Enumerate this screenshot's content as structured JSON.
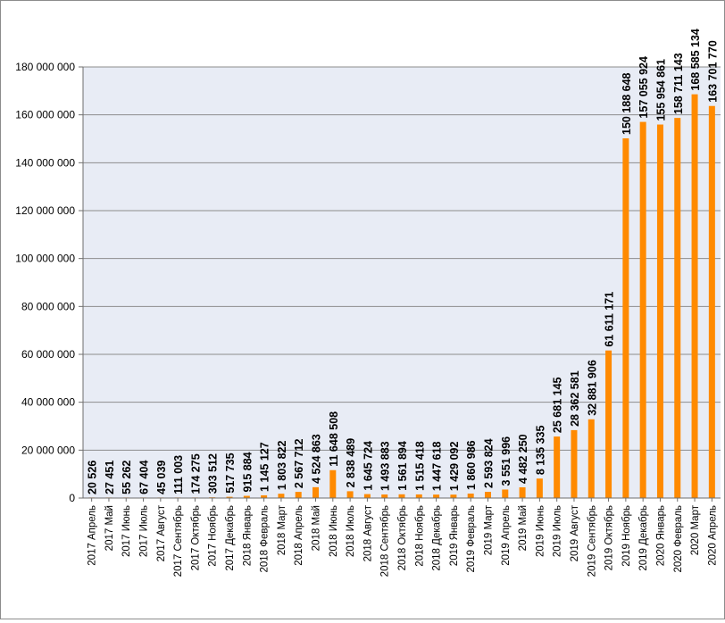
{
  "chart_data": {
    "type": "bar",
    "title": "",
    "xlabel": "",
    "ylabel": "",
    "ylim": [
      0,
      180000000
    ],
    "grid": true,
    "legend": "none",
    "colors": {
      "bar_top": "#14137a",
      "bar_mid": "#ff0000",
      "bar_bottom": "#ff8a00",
      "plot_bg": "#e8ecf5",
      "gridline": "#8c8c8c"
    },
    "y_tick_labels": [
      "0",
      "20 000 000",
      "40 000 000",
      "60 000 000",
      "80 000 000",
      "100 000 000",
      "120 000 000",
      "140 000 000",
      "160 000 000",
      "180 000 000"
    ],
    "categories": [
      "2017 Апрель",
      "2017 Май",
      "2017 Июнь",
      "2017 Июль",
      "2017 Август",
      "2017 Сентябрь",
      "2017 Октябрь",
      "2017 Ноябрь",
      "2017 Декабрь",
      "2018 Январь",
      "2018 Февраль",
      "2018 Март",
      "2018 Апрель",
      "2018 Май",
      "2018 Июнь",
      "2018 Июль",
      "2018 Август",
      "2018 Сентябрь",
      "2018 Октябрь",
      "2018 Ноябрь",
      "2018 Декабрь",
      "2019 Январь",
      "2019 Февраль",
      "2019 Март",
      "2019 Апрель",
      "2019 Май",
      "2019 Июнь",
      "2019 Июль",
      "2019 Август",
      "2019 Сентябрь",
      "2019 Октябрь",
      "2019 Ноябрь",
      "2019 Декабрь",
      "2020 Январь",
      "2020 Февраль",
      "2020 Март",
      "2020 Апрель"
    ],
    "values": [
      20526,
      27451,
      55262,
      67404,
      45039,
      111003,
      174275,
      303512,
      517735,
      915884,
      1145127,
      1803822,
      2567712,
      4524863,
      11648508,
      2838489,
      1645724,
      1493883,
      1561894,
      1515418,
      1447618,
      1429092,
      1860986,
      2593824,
      3551996,
      4482250,
      8135335,
      25681145,
      28362581,
      32881906,
      61611171,
      150188648,
      157055924,
      155954861,
      158711143,
      168585134,
      163701770
    ],
    "value_labels": [
      "20 526",
      "27 451",
      "55 262",
      "67 404",
      "45 039",
      "111 003",
      "174 275",
      "303 512",
      "517 735",
      "915 884",
      "1 145 127",
      "1 803 822",
      "2 567 712",
      "4 524 863",
      "11 648 508",
      "2 838 489",
      "1 645 724",
      "1 493 883",
      "1 561 894",
      "1 515 418",
      "1 447 618",
      "1 429 092",
      "1 860 986",
      "2 593 824",
      "3 551 996",
      "4 482 250",
      "8 135 335",
      "25 681 145",
      "28 362 581",
      "32 881 906",
      "61 611 171",
      "150 188 648",
      "157 055 924",
      "155 954 861",
      "158 711 143",
      "168 585 134",
      "163 701 770"
    ]
  }
}
